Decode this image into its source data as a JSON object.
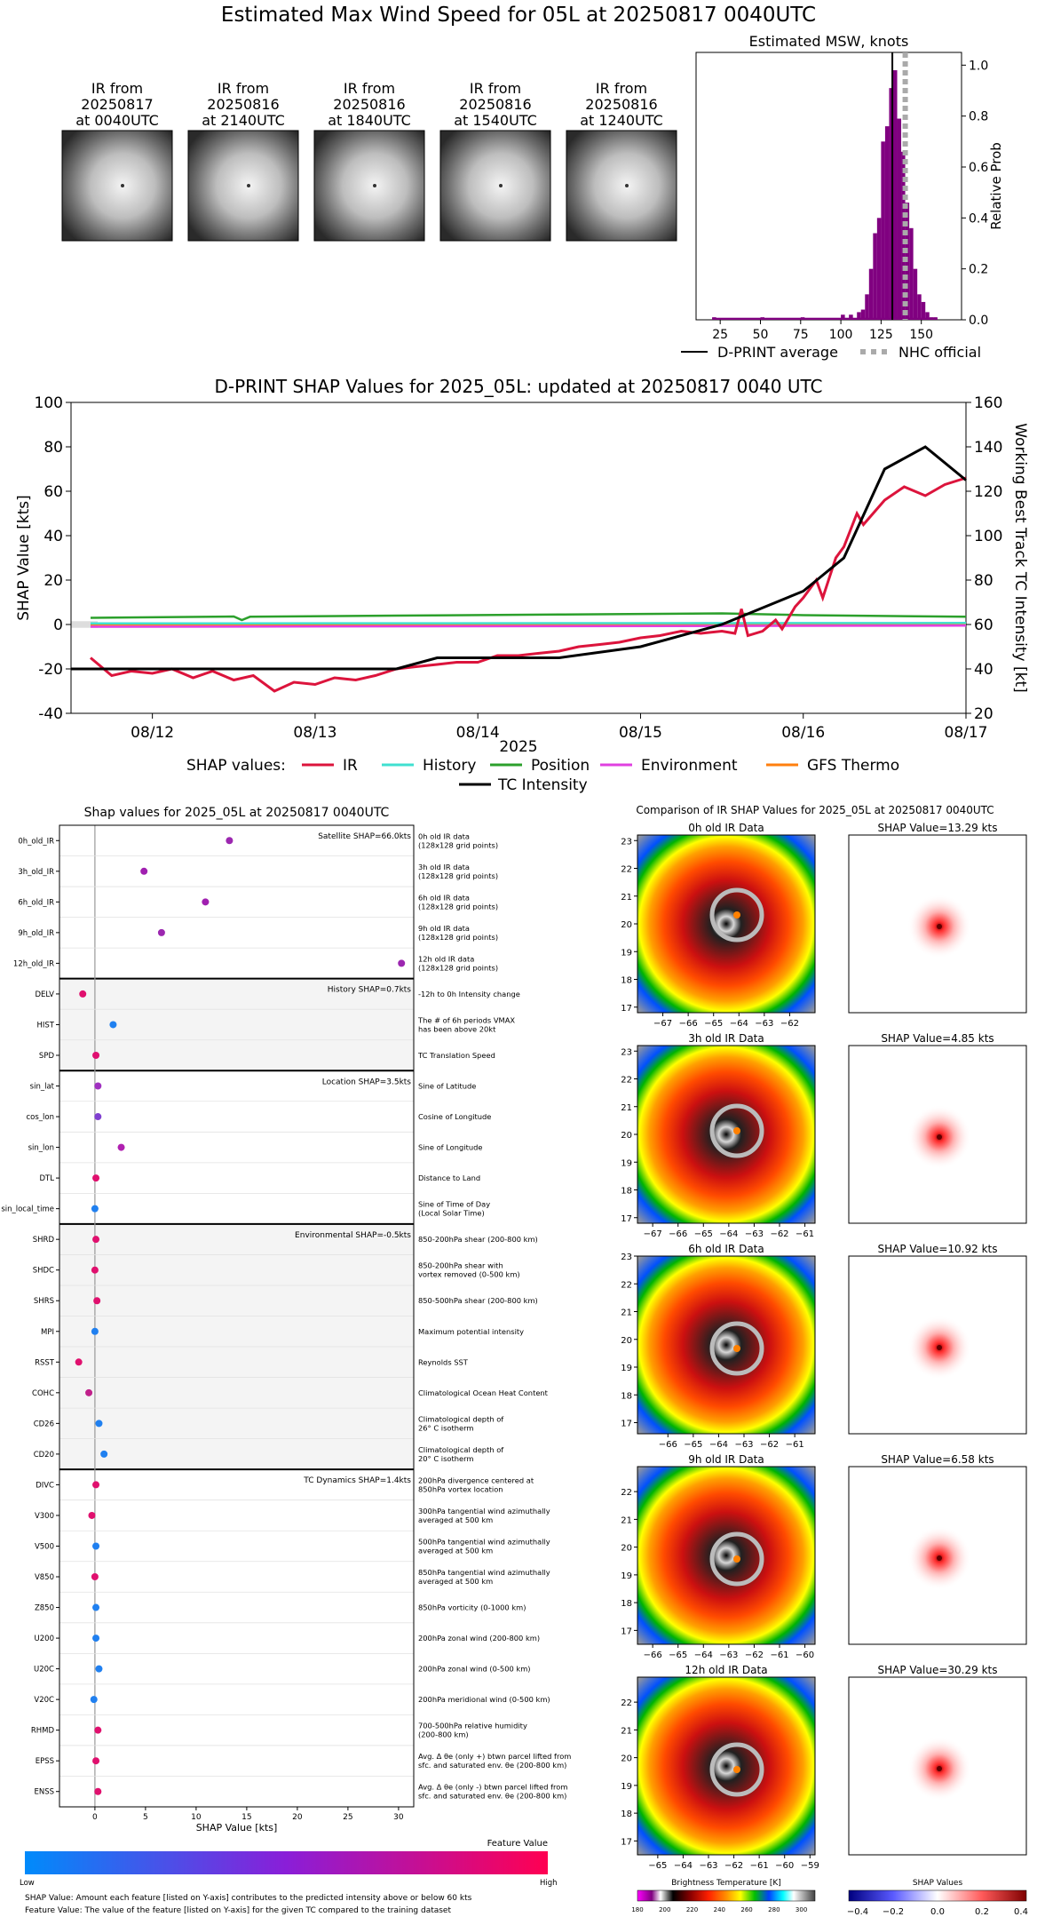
{
  "page_title": "Estimated Max Wind Speed for 05L at 20250817 0040UTC",
  "thumbnails": [
    {
      "caption": [
        "IR from",
        "20250817",
        "at 0040UTC"
      ]
    },
    {
      "caption": [
        "IR from",
        "20250816",
        "at 2140UTC"
      ]
    },
    {
      "caption": [
        "IR from",
        "20250816",
        "at 1840UTC"
      ]
    },
    {
      "caption": [
        "IR from",
        "20250816",
        "at 1540UTC"
      ]
    },
    {
      "caption": [
        "IR from",
        "20250816",
        "at 1240UTC"
      ]
    }
  ],
  "colors": {
    "purple": "#800080",
    "ir": "#dc143c",
    "history": "#40e0d0",
    "position": "#2ca02c",
    "environment": "#e040e0",
    "gfs": "#ff7f0e",
    "tc": "#000000"
  },
  "chart_data": [
    {
      "id": "msw_histogram",
      "type": "bar",
      "title": "Estimated MSW, knots",
      "ylabel": "Relative Prob",
      "xlim": [
        10,
        175
      ],
      "ylim": [
        0,
        1.05
      ],
      "xticks": [
        25,
        50,
        75,
        100,
        125,
        150
      ],
      "yticks": [
        0.0,
        0.2,
        0.4,
        0.6,
        0.8,
        1.0
      ],
      "bin_width": 2.5,
      "bins": [
        [
          20,
          0.01
        ],
        [
          50,
          0.01
        ],
        [
          75,
          0.01
        ],
        [
          100,
          0.02
        ],
        [
          105,
          0.02
        ],
        [
          110,
          0.03
        ],
        [
          112.5,
          0.04
        ],
        [
          115,
          0.1
        ],
        [
          117.5,
          0.2
        ],
        [
          120,
          0.34
        ],
        [
          122.5,
          0.4
        ],
        [
          125,
          0.7
        ],
        [
          127.5,
          0.76
        ],
        [
          130,
          0.91
        ],
        [
          132.5,
          0.98
        ],
        [
          135,
          0.79
        ],
        [
          137.5,
          0.66
        ],
        [
          140,
          0.46
        ],
        [
          142.5,
          0.36
        ],
        [
          145,
          0.2
        ],
        [
          147.5,
          0.1
        ],
        [
          150,
          0.07
        ],
        [
          152.5,
          0.03
        ],
        [
          155,
          0.01
        ],
        [
          157.5,
          0.01
        ]
      ],
      "bins_from": 20,
      "bins_to": 160,
      "dprint_average": 132,
      "nhc_official": 140,
      "legend": [
        {
          "label": "D-PRINT average",
          "style": "solid"
        },
        {
          "label": "NHC official",
          "style": "dotted"
        }
      ]
    },
    {
      "id": "shap_timeseries",
      "type": "line",
      "title": "D-PRINT SHAP Values for 2025_05L: updated at 20250817 0040 UTC",
      "xlabel": "2025",
      "ylabel": "SHAP Value [kts]",
      "ylabel_right": "Working Best Track TC Intensity [kt]",
      "xlim": [
        0,
        5.5
      ],
      "ylim": [
        -40,
        100
      ],
      "ylim_right": [
        20,
        160
      ],
      "xtick_labels": [
        "08/12",
        "08/13",
        "08/14",
        "08/15",
        "08/16",
        "08/17"
      ],
      "xtick_positions": [
        0.5,
        1.5,
        2.5,
        3.5,
        4.5,
        5.5
      ],
      "yticks": [
        -40,
        -20,
        0,
        20,
        40,
        60,
        80,
        100
      ],
      "yticks_right": [
        20,
        40,
        60,
        80,
        100,
        120,
        140,
        160
      ],
      "legend_prefix": "SHAP values:",
      "legend": [
        "IR",
        "History",
        "Position",
        "Environment",
        "GFS Thermo",
        "TC Intensity"
      ],
      "series": [
        {
          "name": "IR",
          "x": [
            0.12,
            0.25,
            0.37,
            0.5,
            0.62,
            0.75,
            0.87,
            1.0,
            1.12,
            1.25,
            1.37,
            1.5,
            1.62,
            1.75,
            1.87,
            2.0,
            2.12,
            2.25,
            2.37,
            2.5,
            2.62,
            2.75,
            2.87,
            3.0,
            3.12,
            3.25,
            3.37,
            3.5,
            3.62,
            3.75,
            3.87,
            4.0,
            4.08,
            4.12,
            4.16,
            4.25,
            4.33,
            4.37,
            4.45,
            4.5,
            4.58,
            4.62,
            4.7,
            4.75,
            4.83,
            4.87,
            5.0,
            5.12,
            5.25,
            5.37,
            5.5
          ],
          "values": [
            -15,
            -23,
            -21,
            -22,
            -20,
            -24,
            -21,
            -25,
            -23,
            -30,
            -26,
            -27,
            -24,
            -25,
            -23,
            -20,
            -19,
            -18,
            -17,
            -17,
            -14,
            -14,
            -13,
            -12,
            -10,
            -9,
            -8,
            -6,
            -5,
            -3,
            -4,
            -3,
            -4,
            7,
            -5,
            -3,
            2,
            -2,
            8,
            12,
            20,
            12,
            30,
            35,
            50,
            45,
            56,
            62,
            58,
            63,
            66
          ]
        },
        {
          "name": "History",
          "x": [
            0.12,
            5.5
          ],
          "values": [
            0.5,
            0.7
          ]
        },
        {
          "name": "Position",
          "x": [
            0.12,
            1.0,
            1.05,
            1.1,
            2.0,
            3.0,
            4.0,
            4.5,
            5.5
          ],
          "values": [
            3.0,
            3.6,
            2.0,
            3.5,
            4.0,
            4.5,
            5.0,
            4.2,
            3.5
          ]
        },
        {
          "name": "Environment",
          "x": [
            0.12,
            5.5
          ],
          "values": [
            -1.0,
            -0.5
          ]
        },
        {
          "name": "GFS Thermo",
          "x": [
            0.12,
            5.5
          ],
          "values": [
            0.0,
            0.0
          ]
        },
        {
          "name": "TC Intensity",
          "axis": "right",
          "x": [
            0.0,
            1.0,
            1.25,
            2.0,
            2.25,
            2.5,
            3.0,
            3.5,
            4.0,
            4.5,
            4.75,
            5.0,
            5.25,
            5.5
          ],
          "values": [
            40,
            40,
            40,
            40,
            45,
            45,
            45,
            50,
            60,
            75,
            90,
            130,
            140,
            125
          ]
        }
      ]
    },
    {
      "id": "feature_shap",
      "type": "scatter",
      "title": "Shap values for 2025_05L at 20250817 0040UTC",
      "xlabel": "SHAP Value [kts]",
      "xlim": [
        -3.5,
        31.5
      ],
      "xticks": [
        0,
        5,
        10,
        15,
        20,
        25,
        30
      ],
      "groups": [
        {
          "label": "Satellite SHAP=66.0kts",
          "features": [
            {
              "name": "0h_old_IR",
              "desc": [
                "0h old IR data",
                "(128x128 grid points)"
              ],
              "value": 13.29,
              "color": "#9c27b0"
            },
            {
              "name": "3h_old_IR",
              "desc": [
                "3h old IR data",
                "(128x128 grid points)"
              ],
              "value": 4.85,
              "color": "#a020b0"
            },
            {
              "name": "6h_old_IR",
              "desc": [
                "6h old IR data",
                "(128x128 grid points)"
              ],
              "value": 10.92,
              "color": "#a020b0"
            },
            {
              "name": "9h_old_IR",
              "desc": [
                "9h old IR data",
                "(128x128 grid points)"
              ],
              "value": 6.58,
              "color": "#9c27b0"
            },
            {
              "name": "12h_old_IR",
              "desc": [
                "12h old IR data",
                "(128x128 grid points)"
              ],
              "value": 30.29,
              "color": "#9c27b0"
            }
          ]
        },
        {
          "label": "History SHAP=0.7kts",
          "features": [
            {
              "name": "DELV",
              "desc": [
                "-12h to 0h Intensity change"
              ],
              "value": -1.2,
              "color": "#e0106e"
            },
            {
              "name": "HIST",
              "desc": [
                "The # of 6h periods VMAX",
                "has been above 20kt"
              ],
              "value": 1.8,
              "color": "#2080f0"
            },
            {
              "name": "SPD",
              "desc": [
                "TC Translation Speed"
              ],
              "value": 0.1,
              "color": "#e01070"
            }
          ]
        },
        {
          "label": "Location SHAP=3.5kts",
          "features": [
            {
              "name": "sin_lat",
              "desc": [
                "Sine of Latitude"
              ],
              "value": 0.3,
              "color": "#a030c0"
            },
            {
              "name": "cos_lon",
              "desc": [
                "Cosine of Longitude"
              ],
              "value": 0.3,
              "color": "#8040d0"
            },
            {
              "name": "sin_lon",
              "desc": [
                "Sine of Longitude"
              ],
              "value": 2.6,
              "color": "#b020b0"
            },
            {
              "name": "DTL",
              "desc": [
                "Distance to Land"
              ],
              "value": 0.1,
              "color": "#e0106e"
            },
            {
              "name": "sin_local_time",
              "desc": [
                "Sine of Time of Day",
                "(Local Solar Time)"
              ],
              "value": 0.0,
              "color": "#2080f0"
            }
          ]
        },
        {
          "label": "Environmental SHAP=-0.5kts",
          "features": [
            {
              "name": "SHRD",
              "desc": [
                "850-200hPa shear (200-800 km)"
              ],
              "value": 0.1,
              "color": "#e0106e"
            },
            {
              "name": "SHDC",
              "desc": [
                "850-200hPa shear with",
                "vortex removed (0-500 km)"
              ],
              "value": 0.0,
              "color": "#e0106e"
            },
            {
              "name": "SHRS",
              "desc": [
                "850-500hPa shear (200-800 km)"
              ],
              "value": 0.2,
              "color": "#e0106e"
            },
            {
              "name": "MPI",
              "desc": [
                "Maximum potential intensity"
              ],
              "value": 0.0,
              "color": "#2080f0"
            },
            {
              "name": "RSST",
              "desc": [
                "Reynolds SST"
              ],
              "value": -1.6,
              "color": "#e0106e"
            },
            {
              "name": "COHC",
              "desc": [
                "Climatological Ocean Heat Content"
              ],
              "value": -0.6,
              "color": "#c0208a"
            },
            {
              "name": "CD26",
              "desc": [
                "Climatological depth of",
                "26° C isotherm"
              ],
              "value": 0.4,
              "color": "#2080f0"
            },
            {
              "name": "CD20",
              "desc": [
                "Climatological depth of",
                "20° C isotherm"
              ],
              "value": 0.9,
              "color": "#2080f0"
            }
          ]
        },
        {
          "label": "TC Dynamics SHAP=1.4kts",
          "features": [
            {
              "name": "DIVC",
              "desc": [
                "200hPa divergence centered at",
                "850hPa vortex location"
              ],
              "value": 0.1,
              "color": "#e0106e"
            },
            {
              "name": "V300",
              "desc": [
                "300hPa tangential wind azimuthally",
                "averaged at 500 km"
              ],
              "value": -0.3,
              "color": "#e0106e"
            },
            {
              "name": "V500",
              "desc": [
                "500hPa tangential wind azimuthally",
                "averaged at 500 km"
              ],
              "value": 0.1,
              "color": "#2080f0"
            },
            {
              "name": "V850",
              "desc": [
                "850hPa tangential wind azimuthally",
                "averaged at 500 km"
              ],
              "value": 0.0,
              "color": "#e0106e"
            },
            {
              "name": "Z850",
              "desc": [
                "850hPa vorticity (0-1000 km)"
              ],
              "value": 0.1,
              "color": "#2080f0"
            },
            {
              "name": "U200",
              "desc": [
                "200hPa zonal wind (200-800 km)"
              ],
              "value": 0.1,
              "color": "#2080f0"
            },
            {
              "name": "U20C",
              "desc": [
                "200hPa zonal wind (0-500 km)"
              ],
              "value": 0.4,
              "color": "#2080f0"
            },
            {
              "name": "V20C",
              "desc": [
                "200hPa meridional wind (0-500 km)"
              ],
              "value": -0.1,
              "color": "#2080f0"
            },
            {
              "name": "RHMD",
              "desc": [
                "700-500hPa relative humidity",
                "(200-800 km)"
              ],
              "value": 0.3,
              "color": "#e0106e"
            },
            {
              "name": "EPSS",
              "desc": [
                "Avg. Δ θe (only +) btwn parcel lifted from",
                "sfc. and saturated env. θe (200-800 km)"
              ],
              "value": 0.1,
              "color": "#e0106e"
            },
            {
              "name": "ENSS",
              "desc": [
                "Avg. Δ θe (only -) btwn parcel lifted from",
                "sfc. and saturated env. θe (200-800 km)"
              ],
              "value": 0.3,
              "color": "#e0106e"
            }
          ]
        }
      ]
    },
    {
      "id": "ir_maps",
      "type": "heatmap",
      "title": "Comparison of IR SHAP Values for 2025_05L at 20250817 0040UTC",
      "panels": [
        {
          "ir_title": "0h old IR Data",
          "shap_title": "SHAP Value=13.29 kts",
          "xticks": [
            -67,
            -66,
            -65,
            -64,
            -63,
            -62
          ],
          "yticks": [
            17,
            18,
            19,
            20,
            21,
            22,
            23
          ],
          "xlim": [
            -68,
            -61
          ],
          "ylim": [
            16.8,
            23.2
          ],
          "eye_x": 0.52,
          "eye_y": 0.45
        },
        {
          "ir_title": "3h old IR Data",
          "shap_title": "SHAP Value=4.85 kts",
          "xticks": [
            -67,
            -66,
            -65,
            -64,
            -63,
            -62,
            -61
          ],
          "yticks": [
            17,
            18,
            19,
            20,
            21,
            22,
            23
          ],
          "xlim": [
            -67.6,
            -60.6
          ],
          "ylim": [
            16.8,
            23.2
          ],
          "eye_x": 0.52,
          "eye_y": 0.48
        },
        {
          "ir_title": "6h old IR Data",
          "shap_title": "SHAP Value=10.92 kts",
          "xticks": [
            -66,
            -65,
            -64,
            -63,
            -62,
            -61
          ],
          "yticks": [
            17,
            18,
            19,
            20,
            21,
            22,
            23
          ],
          "xlim": [
            -67.2,
            -60.2
          ],
          "ylim": [
            16.6,
            23.0
          ],
          "eye_x": 0.52,
          "eye_y": 0.52
        },
        {
          "ir_title": "9h old IR Data",
          "shap_title": "SHAP Value=6.58 kts",
          "xticks": [
            -66,
            -65,
            -64,
            -63,
            -62,
            -61,
            -60
          ],
          "yticks": [
            17,
            18,
            19,
            20,
            21,
            22
          ],
          "xlim": [
            -66.6,
            -59.6
          ],
          "ylim": [
            16.5,
            22.9
          ],
          "eye_x": 0.52,
          "eye_y": 0.52
        },
        {
          "ir_title": "12h old IR Data",
          "shap_title": "SHAP Value=30.29 kts",
          "xticks": [
            -65,
            -64,
            -63,
            -62,
            -61,
            -60,
            -59
          ],
          "yticks": [
            17,
            18,
            19,
            20,
            21,
            22
          ],
          "xlim": [
            -65.8,
            -58.8
          ],
          "ylim": [
            16.5,
            22.9
          ],
          "eye_x": 0.52,
          "eye_y": 0.52
        }
      ],
      "ir_colorbar": {
        "label": "Brightness Temperature [K]",
        "ticks": [
          180,
          200,
          220,
          240,
          260,
          280,
          300
        ],
        "range": [
          180,
          310
        ]
      },
      "shap_colorbar": {
        "label": "SHAP Values",
        "ticks": [
          -0.4,
          -0.2,
          0.0,
          0.2,
          0.4
        ]
      }
    }
  ],
  "feature_bar": {
    "title": "Feature Value",
    "low": "Low",
    "high": "High"
  },
  "footnotes": [
    "SHAP Value: Amount each feature [listed on Y-axis] contributes to the predicted intensity above or below 60 kts",
    "Feature Value: The value of the feature [listed on Y-axis] for the given TC compared to the training dataset"
  ]
}
